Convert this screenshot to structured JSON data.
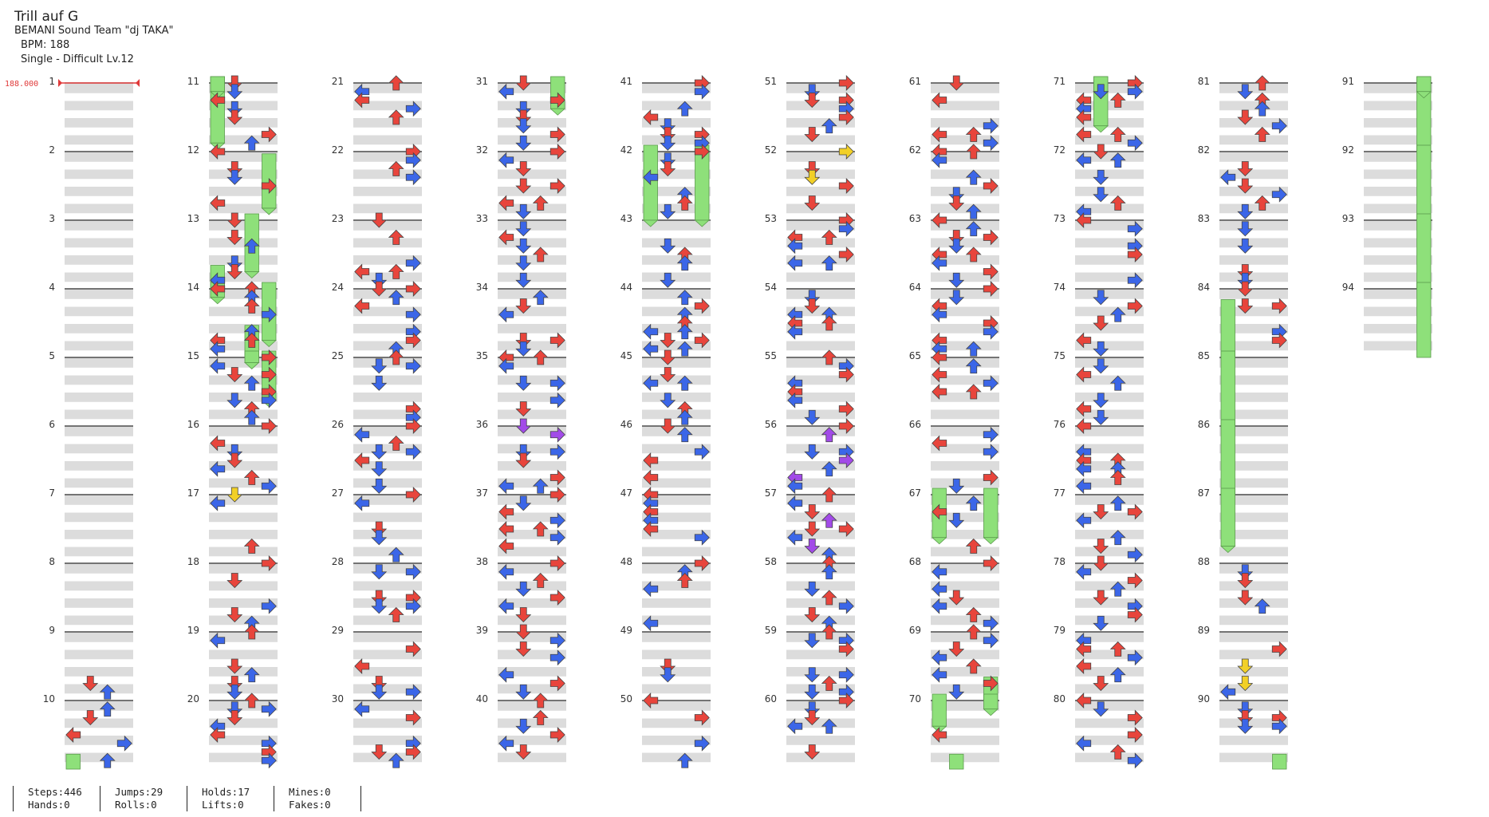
{
  "header": {
    "title": "Trill auf G",
    "artist": "BEMANI Sound Team \"dj TAKA\"",
    "bpm": "BPM: 188",
    "difficulty": "Single - Difficult Lv.12"
  },
  "bpm_marker": "188.000",
  "stats": [
    {
      "top": "Steps:446",
      "bottom": "Hands:0"
    },
    {
      "top": "Jumps:29",
      "bottom": "Rolls:0"
    },
    {
      "top": "Holds:17",
      "bottom": "Lifts:0"
    },
    {
      "top": "Mines:0",
      "bottom": "Fakes:0"
    }
  ],
  "colors": {
    "quarter": "#e8453c",
    "eighth": "#3b66e8",
    "sixteenth": "#f2d027",
    "twelfth": "#a24be8",
    "hold": "#8ee07a",
    "lane_band": "#dcdcdc"
  },
  "chart_data": {
    "type": "step-chart",
    "measures": 94,
    "columns": 4,
    "column_names": [
      "left",
      "down",
      "up",
      "right"
    ],
    "notes_sample": [
      {
        "measure": 9,
        "beat": 3,
        "cols": [
          2
        ],
        "color": "quarter"
      },
      {
        "measure": 9,
        "beat": 3.5,
        "cols": [
          1
        ],
        "color": "eighth"
      },
      {
        "measure": 10,
        "beat": 0,
        "cols": [
          0
        ],
        "color": "quarter"
      },
      {
        "measure": 10,
        "beat": 0.5,
        "cols": [
          0,
          3
        ],
        "color": "eighth"
      },
      {
        "measure": 11,
        "beat": 0,
        "cols": [
          0
        ],
        "type": "hold",
        "length": 2
      },
      {
        "measure": 12,
        "beat": 2,
        "cols": [
          3
        ],
        "type": "hold",
        "length": 1.5
      },
      {
        "measure": 42,
        "beat": 0,
        "cols": [
          0,
          3
        ],
        "type": "hold",
        "length": 4
      },
      {
        "measure": 67,
        "beat": 0,
        "cols": [
          0,
          3
        ],
        "type": "hold",
        "length": 2
      },
      {
        "measure": 71,
        "beat": 0,
        "cols": [
          1
        ],
        "type": "hold",
        "length": 2
      },
      {
        "measure": 84,
        "beat": 3,
        "cols": [
          0
        ],
        "type": "hold",
        "length": 15
      },
      {
        "measure": 91,
        "beat": 0,
        "cols": [
          3
        ],
        "type": "hold",
        "length": 16
      },
      {
        "measure": 36,
        "beat": 1,
        "cols": [
          0,
          2
        ],
        "color": "twelfth"
      },
      {
        "measure": 55,
        "beat": 0,
        "cols": [
          1,
          3
        ],
        "color": "twelfth"
      }
    ]
  }
}
